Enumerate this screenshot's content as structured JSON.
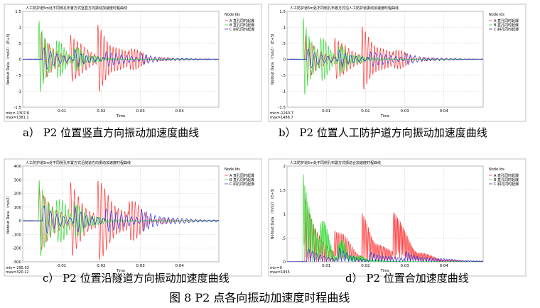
{
  "caption": {
    "a": "a） P2 位置竖直方向振动加速度曲线",
    "b": "b） P2 位置人工防护道方向振动加速度曲线",
    "c": "c） P2 位置沿隧道方向振动加速度曲线",
    "d": "d） P2 位置合加速度曲线",
    "figure": "图 8 P2 点各向振动加速度时程曲线"
  },
  "colors": {
    "red": "#ff3b3b",
    "green": "#3cdc3c",
    "blue": "#3030e0",
    "grid": "#b8b8b8"
  },
  "chart_data": [
    {
      "type": "line",
      "title": "人工防护道5m处不同侧孔布置方式竖直方向振动加速度时程曲线",
      "xlabel": "Time",
      "ylabel": "Nodout Data （m/s2） (E+3)",
      "xlim": [
        0,
        0.05
      ],
      "ylim": [
        -1.5,
        1.5
      ],
      "yticks": [
        "1.5",
        "1",
        ".5",
        "0",
        "-.5",
        "-1",
        "-1.5"
      ],
      "xticks": [
        "0.01",
        "0.02",
        "0.03",
        "0.04"
      ],
      "legend_title": "Node Ids",
      "legend": [
        "A 直孔同时起爆",
        "B 直孔同时起爆",
        "C 斜孔同时起爆"
      ],
      "legend_position": "top-right",
      "minmax": [
        "min=-1307.8",
        "max=1381.1"
      ],
      "series": [
        {
          "color": "red",
          "t": [
            0.0045,
            0.012,
            0.019,
            0.027
          ],
          "amp": [
            0.9,
            0.9,
            1.0,
            0.4
          ],
          "freq": 1000,
          "decay": [
            0.0035,
            0.004,
            0.005,
            0.003
          ]
        },
        {
          "color": "green",
          "t": [
            0.004,
            0.0085,
            0.013
          ],
          "amp": [
            1.3,
            0.6,
            0.35
          ],
          "freq": 1400,
          "decay": [
            0.0025,
            0.003,
            0.004
          ]
        },
        {
          "color": "blue",
          "t": [
            0.005,
            0.013,
            0.021,
            0.03
          ],
          "amp": [
            0.4,
            0.3,
            0.3,
            0.15
          ],
          "freq": 600,
          "decay": [
            0.004,
            0.004,
            0.005,
            0.006
          ]
        }
      ]
    },
    {
      "type": "line",
      "title": "人工防护道5m处不同侧孔布置方式沿人工防护道振动加速度时程曲线",
      "xlabel": "Time",
      "ylabel": "Nodout Data （m/s2） (E+3)",
      "xlim": [
        0,
        0.05
      ],
      "ylim": [
        -1.5,
        1.5
      ],
      "yticks": [
        "1.5",
        "1",
        ".5",
        "0",
        "-.5",
        "-1",
        "-1.5"
      ],
      "xticks": [
        "0.01",
        "0.02",
        "0.03",
        "0.04"
      ],
      "legend_title": "Node Ids",
      "legend": [
        "A 直孔同时起爆",
        "B 直孔同时起爆",
        "C 斜孔同时起爆"
      ],
      "legend_position": "top-right",
      "minmax": [
        "min=-1243.7",
        "max=1488.7"
      ],
      "series": [
        {
          "color": "red",
          "t": [
            0.0045,
            0.012,
            0.019,
            0.027
          ],
          "amp": [
            0.8,
            0.8,
            0.95,
            0.35
          ],
          "freq": 1000,
          "decay": [
            0.0035,
            0.004,
            0.005,
            0.003
          ]
        },
        {
          "color": "green",
          "t": [
            0.004,
            0.0085,
            0.013
          ],
          "amp": [
            1.4,
            0.7,
            0.4
          ],
          "freq": 1400,
          "decay": [
            0.0025,
            0.003,
            0.004
          ]
        },
        {
          "color": "blue",
          "t": [
            0.005,
            0.013,
            0.021,
            0.03
          ],
          "amp": [
            0.35,
            0.3,
            0.3,
            0.15
          ],
          "freq": 600,
          "decay": [
            0.004,
            0.004,
            0.005,
            0.006
          ]
        }
      ]
    },
    {
      "type": "line",
      "title": "人工防护道5m处不同侧孔布置方式沿隧道方向振动加速度时程曲线",
      "xlabel": "Time",
      "ylabel": "Nodout Data （m/s2）",
      "xlim": [
        0,
        0.05
      ],
      "ylim": [
        -300,
        400
      ],
      "yticks": [
        "400",
        "300",
        "200",
        "100",
        "0",
        "-100",
        "-200",
        "-300"
      ],
      "xticks": [
        "0.01",
        "0.02",
        "0.03",
        "0.04"
      ],
      "legend_title": "Node Ids",
      "legend": [
        "A 直孔同时起爆",
        "B 直孔同时起爆",
        "C 斜孔同时起爆"
      ],
      "legend_position": "top-right",
      "minmax": [
        "min=-295.02",
        "max=320.12"
      ],
      "series": [
        {
          "color": "red",
          "t": [
            0.004,
            0.012,
            0.019,
            0.027
          ],
          "amp": [
            260,
            280,
            300,
            180
          ],
          "freq": 900,
          "decay": [
            0.004,
            0.004,
            0.005,
            0.003
          ]
        },
        {
          "color": "green",
          "t": [
            0.004,
            0.0085,
            0.013
          ],
          "amp": [
            320,
            200,
            120
          ],
          "freq": 1200,
          "decay": [
            0.003,
            0.003,
            0.004
          ]
        },
        {
          "color": "blue",
          "t": [
            0.005,
            0.013,
            0.021,
            0.03
          ],
          "amp": [
            120,
            110,
            110,
            70
          ],
          "freq": 600,
          "decay": [
            0.004,
            0.004,
            0.005,
            0.007
          ]
        }
      ]
    },
    {
      "type": "line",
      "title": "人工防护道5m处不同侧孔布置方式振动合加速度时程曲线",
      "xlabel": "Time",
      "ylabel": "Nodout Data （m/s2） (E+3)",
      "xlim": [
        0,
        0.05
      ],
      "ylim": [
        0,
        2
      ],
      "yticks": [
        "2",
        "1.5",
        "1",
        ".5",
        "0"
      ],
      "xticks": [
        "0.01",
        "0.02",
        "0.03",
        "0.04"
      ],
      "legend_title": "Node Ids",
      "legend": [
        "A 直孔同时起爆",
        "B 直孔同时起爆",
        "C 斜孔同时起爆"
      ],
      "legend_position": "top-right",
      "minmax": [
        "min=0",
        "max=1955"
      ],
      "series": [
        {
          "color": "red",
          "t": [
            0.0045,
            0.012,
            0.019,
            0.027
          ],
          "amp": [
            1.4,
            0.9,
            0.95,
            1.2
          ],
          "freq": 1000,
          "decay": [
            0.004,
            0.004,
            0.005,
            0.004
          ]
        },
        {
          "color": "green",
          "t": [
            0.004,
            0.0085,
            0.013
          ],
          "amp": [
            1.95,
            0.8,
            0.4
          ],
          "freq": 1400,
          "decay": [
            0.003,
            0.003,
            0.004
          ]
        },
        {
          "color": "blue",
          "t": [
            0.005,
            0.013,
            0.021,
            0.03
          ],
          "amp": [
            0.3,
            0.25,
            0.25,
            0.2
          ],
          "freq": 500,
          "decay": [
            0.005,
            0.005,
            0.006,
            0.008
          ]
        }
      ],
      "rectified": true
    }
  ]
}
